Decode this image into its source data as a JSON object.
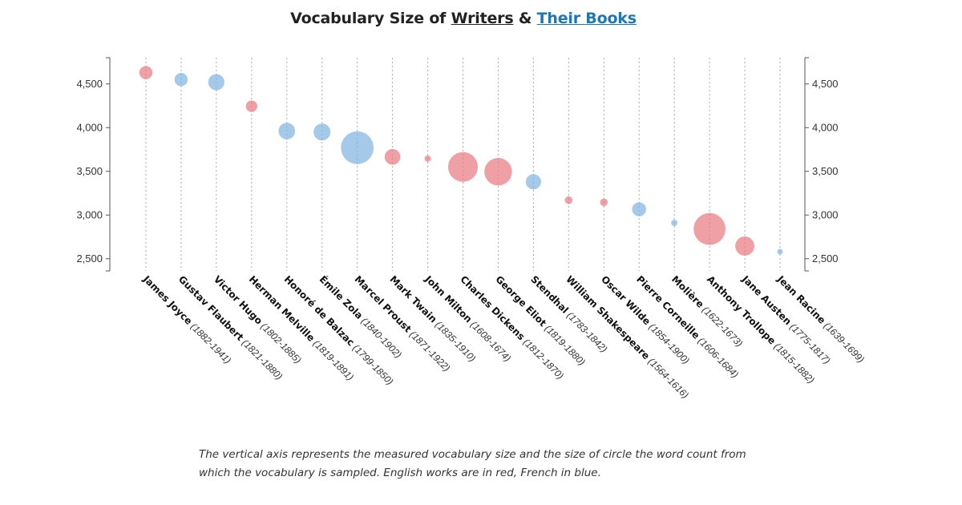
{
  "title": {
    "prefix": "Vocabulary Size of ",
    "writers_link": "Writers",
    "middle": " & ",
    "books_link": "Their Books"
  },
  "caption": "The vertical axis represents the measured vocabulary size and the size of circle the word count from which the vocabulary is sampled. English works are in red, French in blue.",
  "colors": {
    "english": "#e8777d",
    "french": "#7fb2df",
    "axis": "#555555",
    "gridline": "#aaaaaa"
  },
  "chart_data": {
    "type": "scatter",
    "title": "Vocabulary Size of Writers & Their Books",
    "ylim": [
      2360,
      4800
    ],
    "yticks": [
      2500,
      3000,
      3500,
      4000,
      4500
    ],
    "ytick_labels": [
      "2,500",
      "3,000",
      "3,500",
      "4,000",
      "4,500"
    ],
    "y_axes": [
      "left",
      "right"
    ],
    "grid": "vertical dotted lines per writer",
    "series": [
      {
        "name": "English",
        "color": "#e8777d"
      },
      {
        "name": "French",
        "color": "#7fb2df"
      }
    ],
    "points": [
      {
        "writer": "James Joyce",
        "years": "(1882-1941)",
        "language": "English",
        "vocabulary": 4630,
        "word_count_relative": 0.31
      },
      {
        "writer": "Gustav Flaubert",
        "years": "(1821-1880)",
        "language": "French",
        "vocabulary": 4550,
        "word_count_relative": 0.31
      },
      {
        "writer": "Victor Hugo",
        "years": "(1802-1885)",
        "language": "French",
        "vocabulary": 4520,
        "word_count_relative": 0.38
      },
      {
        "writer": "Herman Melville",
        "years": "(1819-1891)",
        "language": "English",
        "vocabulary": 4245,
        "word_count_relative": 0.27
      },
      {
        "writer": "Honoré de Balzac",
        "years": "(1799-1850)",
        "language": "French",
        "vocabulary": 3960,
        "word_count_relative": 0.39
      },
      {
        "writer": "Émile Zola",
        "years": "(1840-1902)",
        "language": "French",
        "vocabulary": 3950,
        "word_count_relative": 0.4
      },
      {
        "writer": "Marcel Proust",
        "years": "(1871-1922)",
        "language": "French",
        "vocabulary": 3770,
        "word_count_relative": 0.77
      },
      {
        "writer": "Mark Twain",
        "years": "(1835-1910)",
        "language": "English",
        "vocabulary": 3665,
        "word_count_relative": 0.37
      },
      {
        "writer": "John Milton",
        "years": "(1608-1674)",
        "language": "English",
        "vocabulary": 3645,
        "word_count_relative": 0.15
      },
      {
        "writer": "Charles Dickens",
        "years": "(1812-1870)",
        "language": "English",
        "vocabulary": 3550,
        "word_count_relative": 0.7
      },
      {
        "writer": "George Eliot",
        "years": "(1819-1880)",
        "language": "English",
        "vocabulary": 3495,
        "word_count_relative": 0.65
      },
      {
        "writer": "Stendhal",
        "years": "(1783-1842)",
        "language": "French",
        "vocabulary": 3380,
        "word_count_relative": 0.36
      },
      {
        "writer": "William Shakespeare",
        "years": "(1564-1616)",
        "language": "English",
        "vocabulary": 3170,
        "word_count_relative": 0.18
      },
      {
        "writer": "Oscar Wilde",
        "years": "(1854-1900)",
        "language": "English",
        "vocabulary": 3145,
        "word_count_relative": 0.18
      },
      {
        "writer": "Pierre Corneille",
        "years": "(1606-1684)",
        "language": "French",
        "vocabulary": 3065,
        "word_count_relative": 0.33
      },
      {
        "writer": "Molière",
        "years": "(1622-1673)",
        "language": "French",
        "vocabulary": 2910,
        "word_count_relative": 0.15
      },
      {
        "writer": "Anthony Trollope",
        "years": "(1815-1882)",
        "language": "English",
        "vocabulary": 2840,
        "word_count_relative": 0.75
      },
      {
        "writer": "Jane Austen",
        "years": "(1775-1817)",
        "language": "English",
        "vocabulary": 2645,
        "word_count_relative": 0.45
      },
      {
        "writer": "Jean Racine",
        "years": "(1639-1699)",
        "language": "French",
        "vocabulary": 2580,
        "word_count_relative": 0.08
      }
    ]
  }
}
